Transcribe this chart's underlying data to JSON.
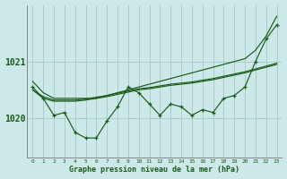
{
  "title": "Graphe pression niveau de la mer (hPa)",
  "bg_color": "#cce8e8",
  "grid_color": "#aacccc",
  "line_color": "#1a5c1a",
  "x_labels": [
    "0",
    "1",
    "2",
    "3",
    "4",
    "5",
    "6",
    "7",
    "8",
    "9",
    "10",
    "11",
    "12",
    "13",
    "14",
    "15",
    "16",
    "17",
    "18",
    "19",
    "20",
    "21",
    "22",
    "23"
  ],
  "yticks": [
    1020,
    1021
  ],
  "ylim": [
    1019.3,
    1022.0
  ],
  "series_marker": [
    1020.55,
    1020.35,
    1020.05,
    1020.1,
    1019.75,
    1019.65,
    1019.65,
    1019.95,
    1020.2,
    1020.55,
    1020.45,
    1020.25,
    1020.05,
    1020.25,
    1020.2,
    1020.05,
    1020.15,
    1020.1,
    1020.35,
    1020.4,
    1020.55,
    1021.0,
    1021.4,
    1021.65
  ],
  "series_high": [
    1020.65,
    1020.45,
    1020.35,
    1020.35,
    1020.35,
    1020.35,
    1020.35,
    1020.4,
    1020.45,
    1020.5,
    1020.55,
    1020.6,
    1020.65,
    1020.7,
    1020.75,
    1020.8,
    1020.85,
    1020.9,
    1020.95,
    1021.0,
    1021.05,
    1021.2,
    1021.45,
    1021.8
  ],
  "series_trend1": [
    1020.5,
    1020.35,
    1020.3,
    1020.3,
    1020.3,
    1020.32,
    1020.35,
    1020.38,
    1020.42,
    1020.46,
    1020.5,
    1020.52,
    1020.55,
    1020.58,
    1020.6,
    1020.62,
    1020.65,
    1020.68,
    1020.72,
    1020.76,
    1020.8,
    1020.85,
    1020.9,
    1020.95
  ],
  "series_trend2": [
    1020.5,
    1020.38,
    1020.32,
    1020.32,
    1020.32,
    1020.34,
    1020.37,
    1020.4,
    1020.44,
    1020.48,
    1020.52,
    1020.54,
    1020.57,
    1020.6,
    1020.62,
    1020.64,
    1020.67,
    1020.7,
    1020.74,
    1020.78,
    1020.82,
    1020.87,
    1020.92,
    1020.97
  ]
}
